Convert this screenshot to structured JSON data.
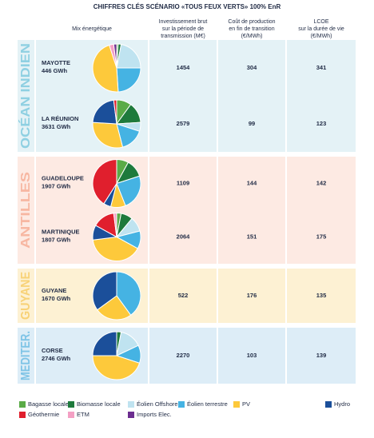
{
  "title": "CHIFFRES CLÉS SCÉNARIO «TOUS FEUX VERTS» 100% EnR",
  "columns": [
    [
      "Mix énergétique"
    ],
    [
      "Investissement brut",
      "sur la période de",
      "transmission (M€)"
    ],
    [
      "Coût de production",
      "en fin de transition",
      "(€/MWh)"
    ],
    [
      "LCOE",
      "sur la durée de vie",
      "(€/MWh)"
    ]
  ],
  "legend": [
    {
      "name": "Bagasse locale",
      "color": "#5aab47"
    },
    {
      "name": "Biomasse locale",
      "color": "#1e7a3c"
    },
    {
      "name": "Éolien Offshore",
      "color": "#bfe3f0"
    },
    {
      "name": "Éolien terrestre",
      "color": "#45b3e3"
    },
    {
      "name": "PV",
      "color": "#fdc93b"
    },
    {
      "name": "Hydro",
      "color": "#1b4f9a"
    },
    {
      "name": "Géothermie",
      "color": "#e01f2d"
    },
    {
      "name": "ETM",
      "color": "#f4a0c4"
    },
    {
      "name": "Imports Elec.",
      "color": "#6b2d8f"
    }
  ],
  "regions": [
    {
      "name": "OCÉAN INDIEN",
      "color": "#8fd0e2",
      "background": "#e4f2f6",
      "rows": [
        {
          "territory": "MAYOTTE",
          "production": "446 GWh",
          "mix": [
            1,
            2,
            22,
            24,
            46,
            0,
            0,
            3,
            2
          ],
          "investment": 1454,
          "cost": 304,
          "lcoe": 341
        },
        {
          "territory": "LA RÉUNION",
          "production": "3631 GWh",
          "mix": [
            10,
            14,
            6,
            16,
            30,
            22,
            2,
            0,
            0
          ],
          "investment": 2579,
          "cost": 99,
          "lcoe": 123
        }
      ]
    },
    {
      "name": "ANTILLES",
      "color": "#f7b7a2",
      "background": "#fdeae3",
      "rows": [
        {
          "territory": "GUADELOUPE",
          "production": "1907 GWh",
          "mix": [
            8,
            12,
            0,
            24,
            10,
            5,
            41,
            0,
            0
          ],
          "investment": 1109,
          "cost": 144,
          "lcoe": 142
        },
        {
          "territory": "MARTINIQUE",
          "production": "1807 GWh",
          "mix": [
            3,
            8,
            10,
            12,
            40,
            10,
            15,
            2,
            0
          ],
          "investment": 2064,
          "cost": 151,
          "lcoe": 175
        }
      ]
    },
    {
      "name": "GUYANE",
      "color": "#f8d277",
      "background": "#fdf1d3",
      "rows": [
        {
          "territory": "GUYANE",
          "production": "1670 GWh",
          "mix": [
            0,
            0,
            0,
            40,
            25,
            35,
            0,
            0,
            0
          ],
          "investment": 522,
          "cost": 176,
          "lcoe": 135
        }
      ]
    },
    {
      "name": "MEDITER.",
      "color": "#7fc4e6",
      "background": "#ddedf7",
      "rows": [
        {
          "territory": "CORSE",
          "production": "2746 GWh",
          "mix": [
            0,
            3,
            15,
            12,
            45,
            25,
            0,
            0,
            0
          ],
          "investment": 2270,
          "cost": 103,
          "lcoe": 139
        }
      ]
    }
  ]
}
